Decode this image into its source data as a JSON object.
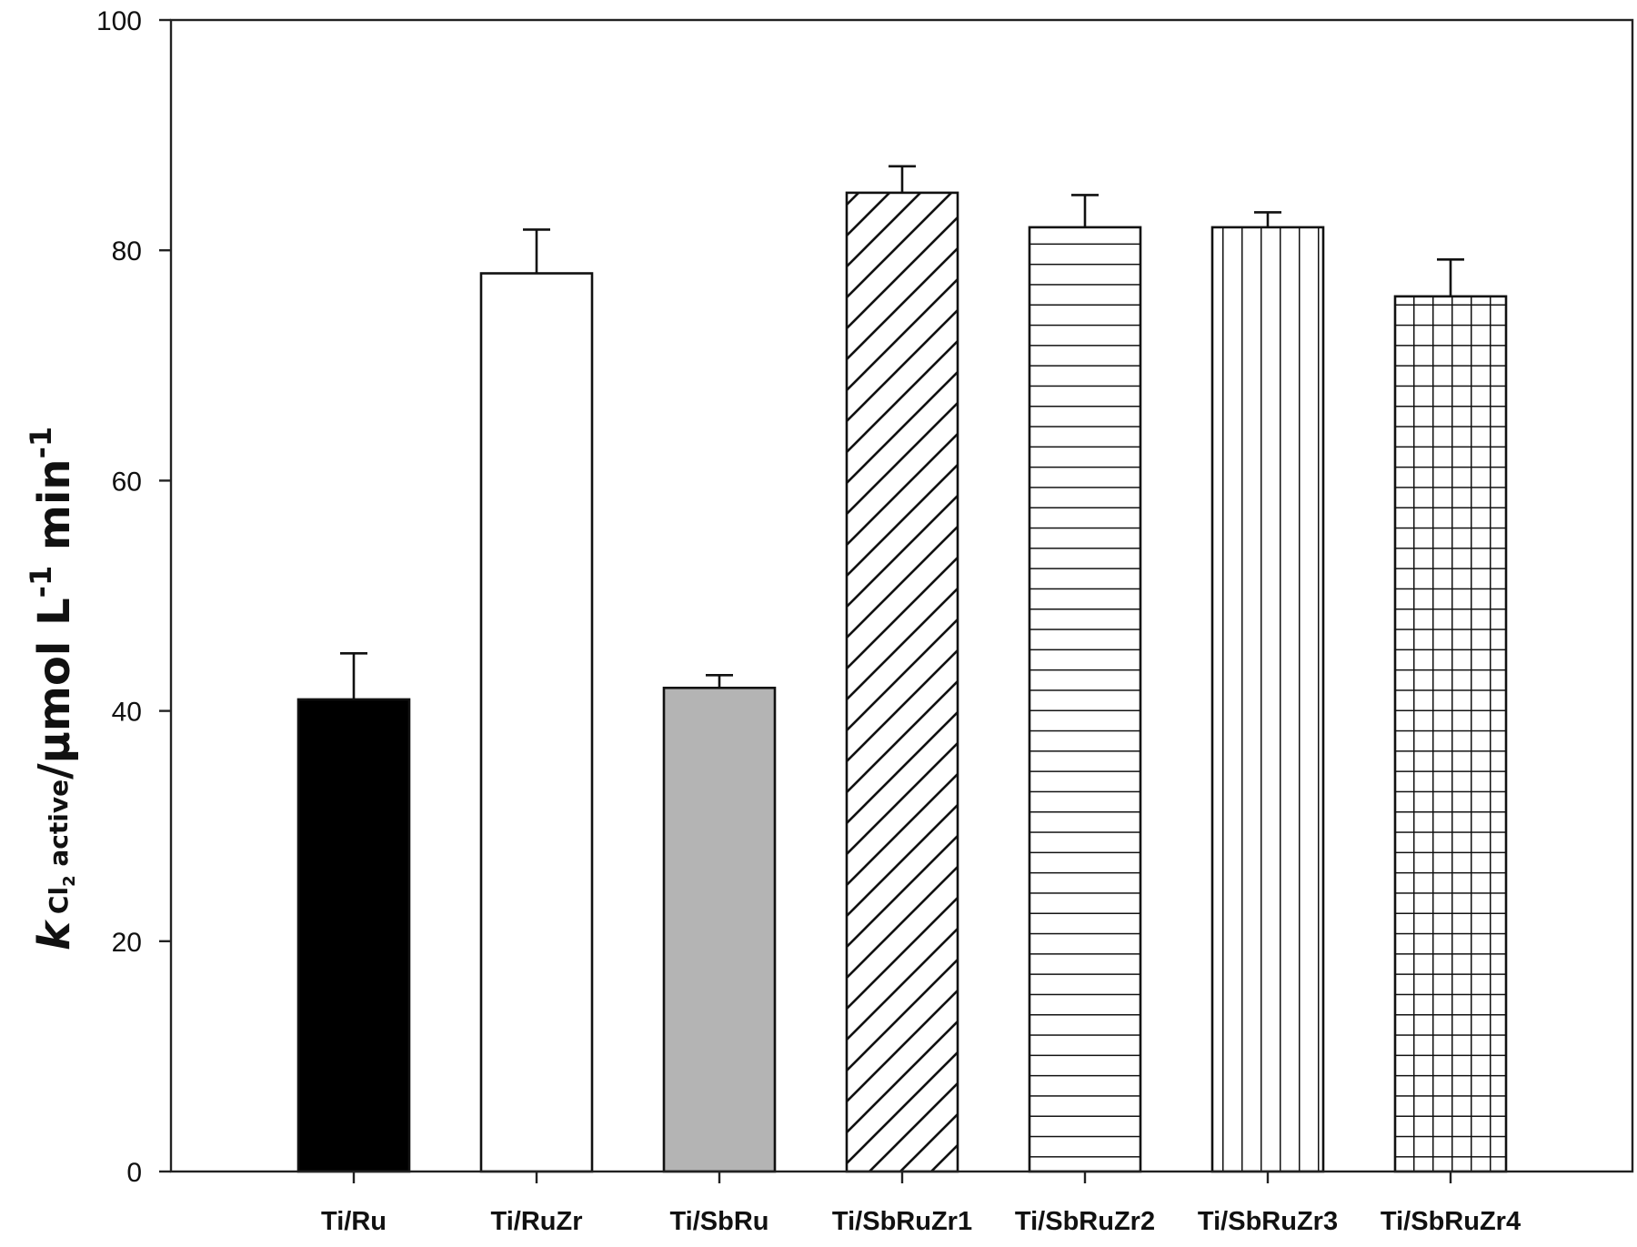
{
  "chart_data": {
    "type": "bar",
    "title": "",
    "xlabel": "",
    "ylabel": {
      "k": "k",
      "sub": "Cl",
      "sub2": "2",
      "sub_rest": " active",
      "unit": "/μmol L",
      "exp1": "-1",
      "unit2": " min",
      "exp2": "-1",
      "full": "k Cl2 active / μmol L-1 min-1"
    },
    "ylim": [
      0,
      100
    ],
    "yticks": [
      0,
      20,
      40,
      60,
      80,
      100
    ],
    "grid": false,
    "legend": null,
    "categories": [
      "Ti/Ru",
      "Ti/RuZr",
      "Ti/SbRu",
      "Ti/SbRuZr1",
      "Ti/SbRuZr2",
      "Ti/SbRuZr3",
      "Ti/SbRuZr4"
    ],
    "values": [
      41,
      78,
      42,
      85,
      82,
      82,
      76
    ],
    "errors": [
      4,
      3.8,
      1.1,
      2.3,
      2.8,
      1.3,
      3.2
    ],
    "fills": [
      "solid-black",
      "white",
      "solid-gray",
      "diagonal-hatch",
      "horizontal-lines",
      "vertical-lines",
      "grid-crosshatch"
    ],
    "colors": {
      "black": "#000000",
      "gray": "#b4b4b4",
      "white": "#ffffff",
      "axis": "#222222"
    }
  }
}
